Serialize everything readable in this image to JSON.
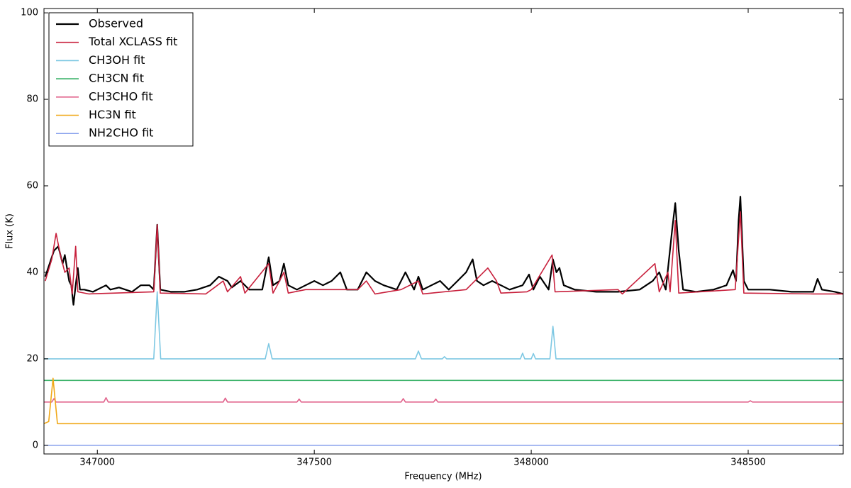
{
  "chart_data": {
    "type": "line",
    "xlabel": "Frequency (MHz)",
    "ylabel": "Flux (K)",
    "xlim": [
      346877,
      348719
    ],
    "ylim": [
      -2,
      101
    ],
    "xticks": [
      347000,
      347500,
      348000,
      348500
    ],
    "yticks": [
      0,
      20,
      40,
      60,
      80,
      100
    ],
    "legend": "upper left",
    "series": [
      {
        "name": "Observed",
        "color": "#000000",
        "width": 2.2,
        "x": [
          346880,
          346890,
          346900,
          346910,
          346920,
          346925,
          346935,
          346940,
          346945,
          346950,
          346955,
          346960,
          346970,
          346990,
          347020,
          347030,
          347050,
          347080,
          347100,
          347120,
          347130,
          347138,
          347145,
          347170,
          347200,
          347230,
          347260,
          347280,
          347300,
          347310,
          347330,
          347350,
          347380,
          347395,
          347405,
          347420,
          347430,
          347440,
          347460,
          347480,
          347500,
          347520,
          347540,
          347560,
          347575,
          347600,
          347620,
          347640,
          347660,
          347690,
          347710,
          347730,
          347740,
          347750,
          347770,
          347790,
          347810,
          347830,
          347850,
          347865,
          347875,
          347890,
          347910,
          347930,
          347950,
          347980,
          347995,
          348005,
          348020,
          348040,
          348050,
          348058,
          348065,
          348075,
          348100,
          348150,
          348200,
          348250,
          348280,
          348295,
          348310,
          348325,
          348332,
          348340,
          348350,
          348380,
          348420,
          348450,
          348465,
          348472,
          348478,
          348482,
          348490,
          348500,
          348550,
          348600,
          348650,
          348660,
          348670,
          348700,
          348719
        ],
        "values": [
          39,
          42,
          45,
          46,
          42,
          44,
          38,
          37,
          32.5,
          37,
          41,
          36,
          36,
          35.5,
          37,
          36,
          36.5,
          35.5,
          37,
          37,
          36,
          51,
          36,
          35.5,
          35.5,
          36,
          37,
          39,
          38,
          36.5,
          38,
          36,
          36,
          43.5,
          37,
          38,
          42,
          37,
          36,
          37,
          38,
          37,
          38,
          40,
          36,
          36,
          40,
          38,
          37,
          36,
          40,
          36,
          39,
          36,
          37,
          38,
          36,
          38,
          40,
          43,
          38,
          37,
          38,
          37,
          36,
          37,
          39.5,
          36,
          39,
          36,
          43,
          40,
          41,
          37,
          36,
          35.5,
          35.5,
          36,
          38,
          40,
          36,
          50,
          56,
          45,
          36,
          35.5,
          36,
          37,
          40.5,
          38,
          52,
          57.5,
          38,
          36,
          36,
          35.5,
          35.5,
          38.5,
          36,
          35.5,
          35
        ]
      },
      {
        "name": "Total XCLASS fit",
        "color": "#c8203c",
        "width": 1.6,
        "x": [
          346880,
          346895,
          346905,
          346915,
          346925,
          346935,
          346942,
          346950,
          346955,
          346980,
          347130,
          347138,
          347145,
          347250,
          347270,
          347290,
          347300,
          347330,
          347340,
          347395,
          347405,
          347420,
          347430,
          347440,
          347480,
          347560,
          347600,
          347620,
          347640,
          347700,
          347740,
          347750,
          347850,
          347900,
          347920,
          347930,
          347990,
          348000,
          348048,
          348055,
          348200,
          348210,
          348285,
          348295,
          348315,
          348320,
          348332,
          348340,
          348470,
          348482,
          348490,
          348650,
          348719
        ],
        "values": [
          38,
          43,
          49,
          44,
          40,
          41,
          35,
          46,
          35.5,
          35,
          35.5,
          51,
          35.2,
          35,
          36.5,
          38,
          35.5,
          39,
          35.2,
          42,
          35.2,
          38,
          40,
          35.2,
          36,
          36,
          36,
          38,
          35,
          36,
          38,
          35,
          36,
          41,
          38,
          35.2,
          35.5,
          36,
          44,
          35.5,
          36,
          35,
          42,
          35.5,
          40,
          35.5,
          52,
          35.2,
          36,
          54,
          35.2,
          35,
          35
        ]
      },
      {
        "name": "CH3OH fit",
        "color": "#7ec8e3",
        "width": 1.6,
        "x": [
          346877,
          347130,
          347138,
          347146,
          347387,
          347395,
          347403,
          347733,
          347740,
          347747,
          347795,
          347800,
          347805,
          347975,
          347980,
          347985,
          348000,
          348005,
          348010,
          348043,
          348050,
          348057,
          348719
        ],
        "values": [
          20,
          20,
          35.5,
          20,
          20,
          23.5,
          20,
          20,
          21.8,
          20,
          20,
          20.5,
          20,
          20,
          21.3,
          20,
          20,
          21.2,
          20,
          20,
          27.5,
          20,
          20
        ]
      },
      {
        "name": "CH3CN fit",
        "color": "#3bb36a",
        "width": 1.6,
        "x": [
          346877,
          348719
        ],
        "values": [
          15,
          15
        ]
      },
      {
        "name": "CH3CHO fit",
        "color": "#e0608a",
        "width": 1.6,
        "x": [
          346877,
          346895,
          346900,
          346905,
          347015,
          347020,
          347025,
          347290,
          347295,
          347300,
          347460,
          347465,
          347470,
          347700,
          347705,
          347710,
          347775,
          347780,
          347785,
          348500,
          348505,
          348510,
          348719
        ],
        "values": [
          10,
          10,
          10.8,
          10,
          10,
          11,
          10,
          10,
          10.9,
          10,
          10,
          10.7,
          10,
          10,
          10.8,
          10,
          10,
          10.7,
          10,
          10,
          10.3,
          10,
          10
        ]
      },
      {
        "name": "HC3N fit",
        "color": "#f0a818",
        "width": 1.6,
        "x": [
          346877,
          346888,
          346898,
          346908,
          348719
        ],
        "values": [
          5,
          5.5,
          15.5,
          5,
          5
        ]
      },
      {
        "name": "NH2CHO fit",
        "color": "#5b7ee5",
        "width": 1.2,
        "x": [
          346877,
          348719
        ],
        "values": [
          0,
          0
        ]
      }
    ]
  }
}
